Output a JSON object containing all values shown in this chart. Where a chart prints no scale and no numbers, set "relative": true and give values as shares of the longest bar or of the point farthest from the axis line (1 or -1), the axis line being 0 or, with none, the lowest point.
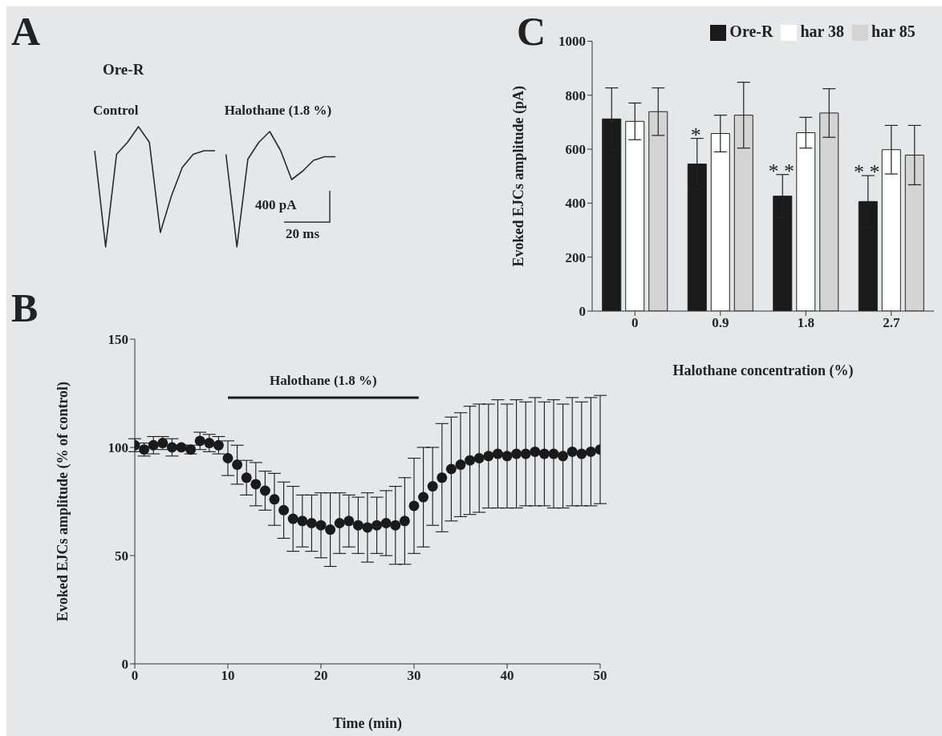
{
  "chart_data": [
    {
      "type": "line",
      "title": "Ore-R",
      "relative": true,
      "tick_labels": false,
      "marker": "none",
      "annotations": [
        "A",
        "400 pA",
        "20 ms"
      ],
      "categories": [
        null,
        null,
        null,
        null,
        null,
        null,
        null,
        null,
        null,
        null,
        null,
        null,
        null,
        null,
        null,
        null,
        null,
        null,
        null,
        null,
        null,
        null,
        null
      ],
      "series": [
        {
          "name": "Control",
          "color": "#2a2a2a",
          "values": [
            0.8,
            0,
            0.77,
            0.87,
            1,
            0.87,
            0.12,
            0.42,
            0.66,
            0.77,
            0.8,
            0.8,
            null,
            null,
            null,
            null,
            null,
            null,
            null,
            null,
            null,
            null,
            null
          ]
        },
        {
          "name": "Halothane (1.8 %)",
          "color": "#2a2a2a",
          "values": [
            null,
            null,
            null,
            null,
            null,
            null,
            null,
            null,
            null,
            null,
            null,
            null,
            0.77,
            0,
            0.73,
            0.87,
            0.96,
            0.8,
            0.56,
            0.63,
            0.72,
            0.75,
            0.75
          ]
        }
      ]
    },
    {
      "type": "bar",
      "xlabel": "Halothane concentration (%)",
      "ylabel": "Evoked EJCs amplitude (pA)",
      "categories": [
        "0",
        "0.9",
        "1.8",
        "2.7"
      ],
      "ylim": [
        0,
        1000
      ],
      "yticks": [
        0,
        200,
        400,
        600,
        800,
        1000
      ],
      "legend": "top",
      "annotations": [
        "C",
        "*",
        "* *",
        "* *"
      ],
      "series": [
        {
          "name": "Ore-R",
          "color": "#1a1a1a",
          "values": [
            712,
            545,
            426,
            406
          ],
          "errors": [
            115,
            95,
            80,
            96
          ]
        },
        {
          "name": "har 38",
          "color": "#ffffff",
          "values": [
            703,
            658,
            661,
            598
          ],
          "errors": [
            68,
            68,
            57,
            90
          ]
        },
        {
          "name": "har 85",
          "color": "#d4d4d4",
          "values": [
            739,
            726,
            734,
            578
          ],
          "errors": [
            88,
            122,
            90,
            110
          ]
        }
      ]
    },
    {
      "type": "scatter",
      "xlabel": "Time (min)",
      "ylabel": "Evoked EJCs amplitude (% of control)",
      "xlim": [
        0,
        50
      ],
      "xticks": [
        0,
        10,
        20,
        30,
        40,
        50
      ],
      "ylim": [
        0,
        150
      ],
      "yticks": [
        0,
        50,
        100,
        150
      ],
      "marker": "circle",
      "annotations": [
        "B",
        {
          "text": "Halothane (1.8 %)",
          "x": 20.25,
          "y": 123
        }
      ],
      "x": [
        0,
        1,
        2,
        3,
        4,
        5,
        6,
        7,
        8,
        9,
        10,
        11,
        12,
        13,
        14,
        15,
        16,
        17,
        18,
        19,
        20,
        21,
        22,
        23,
        24,
        25,
        26,
        27,
        28,
        29,
        30,
        31,
        32,
        33,
        34,
        35,
        36,
        37,
        38,
        39,
        40,
        41,
        42,
        43,
        44,
        45,
        46,
        47,
        48,
        49,
        50
      ],
      "series": [
        {
          "color": "#1a1a1a",
          "values": [
            101,
            99,
            101,
            102,
            100,
            100,
            99,
            103,
            102,
            101,
            95,
            92,
            86,
            83,
            80,
            76,
            71,
            67,
            66,
            65,
            64,
            62,
            65,
            66,
            64,
            63,
            64,
            65,
            64,
            66,
            73,
            77,
            82,
            86,
            90,
            92,
            94,
            95,
            96,
            97,
            96,
            97,
            97,
            98,
            97,
            97,
            96,
            98,
            97,
            98,
            99
          ],
          "errors": [
            3,
            3,
            4,
            3,
            4,
            1,
            2,
            4,
            4,
            4,
            8,
            9,
            8,
            10,
            9,
            12,
            13,
            15,
            12,
            13,
            15,
            17,
            14,
            12,
            13,
            16,
            13,
            15,
            18,
            20,
            22,
            23,
            18,
            25,
            24,
            24,
            25,
            25,
            24,
            25,
            24,
            25,
            24,
            25,
            24,
            25,
            24,
            25,
            24,
            25,
            25
          ]
        },
        {
          "type": "line",
          "color": "#1a1a1a",
          "x": [
            10,
            30.5
          ],
          "values": [
            123,
            123
          ],
          "marker": "none"
        }
      ]
    }
  ]
}
